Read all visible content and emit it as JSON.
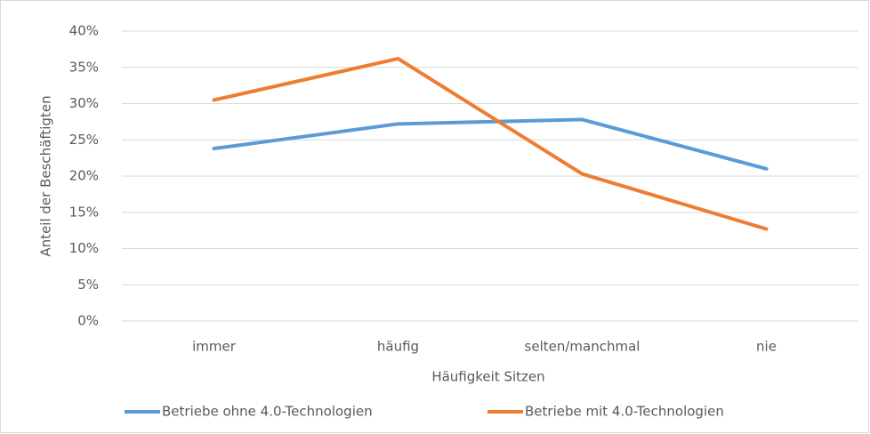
{
  "chart_data": {
    "type": "line",
    "x_label": "Häufigkeit Sitzen",
    "y_label": "Anteil der Beschäftigten",
    "categories": [
      "immer",
      "häufig",
      "selten/manchmal",
      "nie"
    ],
    "series": [
      {
        "name": "Betriebe ohne 4.0-Technologien",
        "color": "#5b9bd5",
        "values": [
          23.8,
          27.2,
          27.8,
          21.0
        ]
      },
      {
        "name": "Betriebe mit 4.0-Technologien",
        "color": "#ed7d31",
        "values": [
          30.5,
          36.2,
          20.3,
          12.7
        ]
      }
    ],
    "ylim": [
      0,
      40
    ],
    "yticks": [
      {
        "value": 0,
        "label": "0%"
      },
      {
        "value": 5,
        "label": "5%"
      },
      {
        "value": 10,
        "label": "10%"
      },
      {
        "value": 15,
        "label": "15%"
      },
      {
        "value": 20,
        "label": "20%"
      },
      {
        "value": 25,
        "label": "25%"
      },
      {
        "value": 30,
        "label": "30%"
      },
      {
        "value": 35,
        "label": "35%"
      },
      {
        "value": 40,
        "label": "40%"
      }
    ],
    "grid": true,
    "legend": "bottom"
  }
}
